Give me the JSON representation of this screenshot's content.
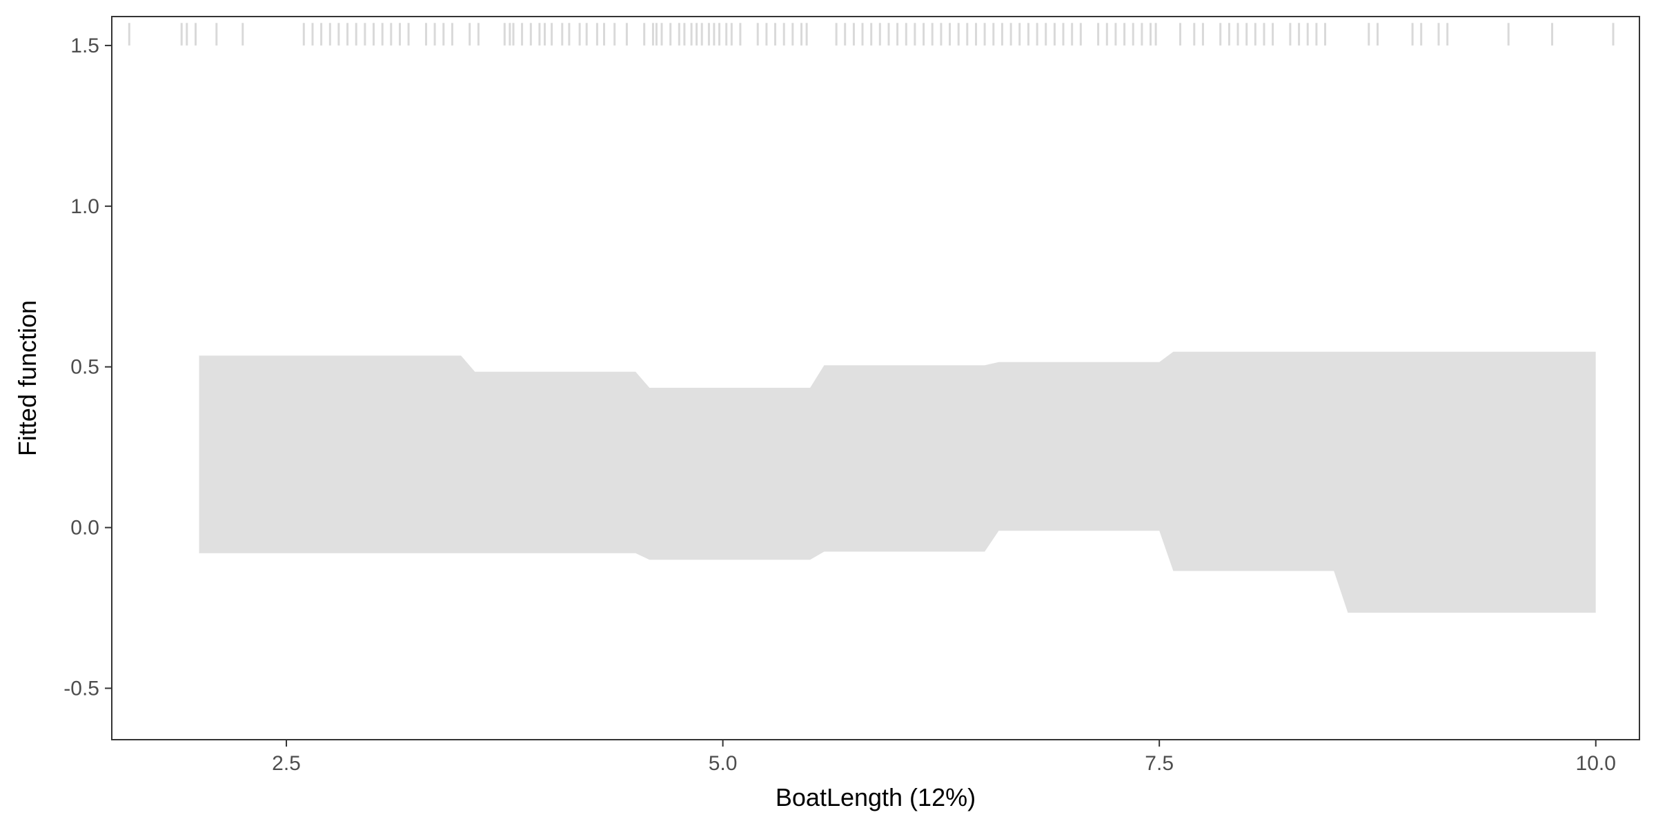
{
  "chart_data": {
    "type": "area",
    "title": "",
    "xlabel": "BoatLength  (12%)",
    "ylabel": "Fitted function",
    "xlim": [
      1.5,
      10.25
    ],
    "ylim": [
      -0.66,
      1.59
    ],
    "x_ticks": [
      2.5,
      5.0,
      7.5,
      10.0
    ],
    "x_tick_labels": [
      "2.5",
      "5.0",
      "7.5",
      "10.0"
    ],
    "y_ticks": [
      -0.5,
      0.0,
      0.5,
      1.0,
      1.5
    ],
    "y_tick_labels": [
      "-0.5",
      "0.0",
      "0.5",
      "1.0",
      "1.5"
    ],
    "grid": false,
    "band_color": "#e0e0e0",
    "rug_color": "#d9d9d9",
    "confidence_band": {
      "upper": [
        [
          2.0,
          0.535
        ],
        [
          3.5,
          0.535
        ],
        [
          3.58,
          0.485
        ],
        [
          4.5,
          0.485
        ],
        [
          4.58,
          0.435
        ],
        [
          5.5,
          0.435
        ],
        [
          5.58,
          0.505
        ],
        [
          6.5,
          0.505
        ],
        [
          6.58,
          0.515
        ],
        [
          7.5,
          0.515
        ],
        [
          7.58,
          0.547
        ],
        [
          10.0,
          0.547
        ]
      ],
      "lower": [
        [
          2.0,
          -0.08
        ],
        [
          3.5,
          -0.08
        ],
        [
          3.58,
          -0.08
        ],
        [
          4.5,
          -0.08
        ],
        [
          4.58,
          -0.1
        ],
        [
          5.5,
          -0.1
        ],
        [
          5.58,
          -0.075
        ],
        [
          6.5,
          -0.075
        ],
        [
          6.58,
          -0.01
        ],
        [
          7.5,
          -0.01
        ],
        [
          7.58,
          -0.135
        ],
        [
          8.5,
          -0.135
        ],
        [
          8.58,
          -0.265
        ],
        [
          10.0,
          -0.265
        ]
      ]
    },
    "rug_y": [
      1.5,
      1.57
    ],
    "rug": [
      1.6,
      1.9,
      1.93,
      1.98,
      2.1,
      2.25,
      2.6,
      2.65,
      2.7,
      2.75,
      2.8,
      2.85,
      2.9,
      2.95,
      3.0,
      3.05,
      3.1,
      3.15,
      3.2,
      3.3,
      3.35,
      3.4,
      3.45,
      3.55,
      3.6,
      3.75,
      3.78,
      3.8,
      3.85,
      3.9,
      3.95,
      3.98,
      4.02,
      4.08,
      4.12,
      4.18,
      4.22,
      4.28,
      4.32,
      4.38,
      4.45,
      4.55,
      4.6,
      4.62,
      4.65,
      4.7,
      4.75,
      4.78,
      4.82,
      4.85,
      4.88,
      4.92,
      4.95,
      4.98,
      5.02,
      5.05,
      5.1,
      5.2,
      5.25,
      5.3,
      5.35,
      5.4,
      5.45,
      5.48,
      5.65,
      5.7,
      5.75,
      5.8,
      5.85,
      5.9,
      5.95,
      6.0,
      6.05,
      6.1,
      6.15,
      6.2,
      6.25,
      6.3,
      6.35,
      6.4,
      6.45,
      6.5,
      6.55,
      6.6,
      6.65,
      6.7,
      6.75,
      6.8,
      6.85,
      6.9,
      6.95,
      7.0,
      7.05,
      7.15,
      7.2,
      7.25,
      7.3,
      7.35,
      7.4,
      7.45,
      7.48,
      7.62,
      7.7,
      7.75,
      7.85,
      7.9,
      7.95,
      8.0,
      8.05,
      8.1,
      8.15,
      8.25,
      8.3,
      8.35,
      8.4,
      8.45,
      8.7,
      8.75,
      8.95,
      9.0,
      9.1,
      9.15,
      9.5,
      9.75,
      10.1
    ]
  }
}
